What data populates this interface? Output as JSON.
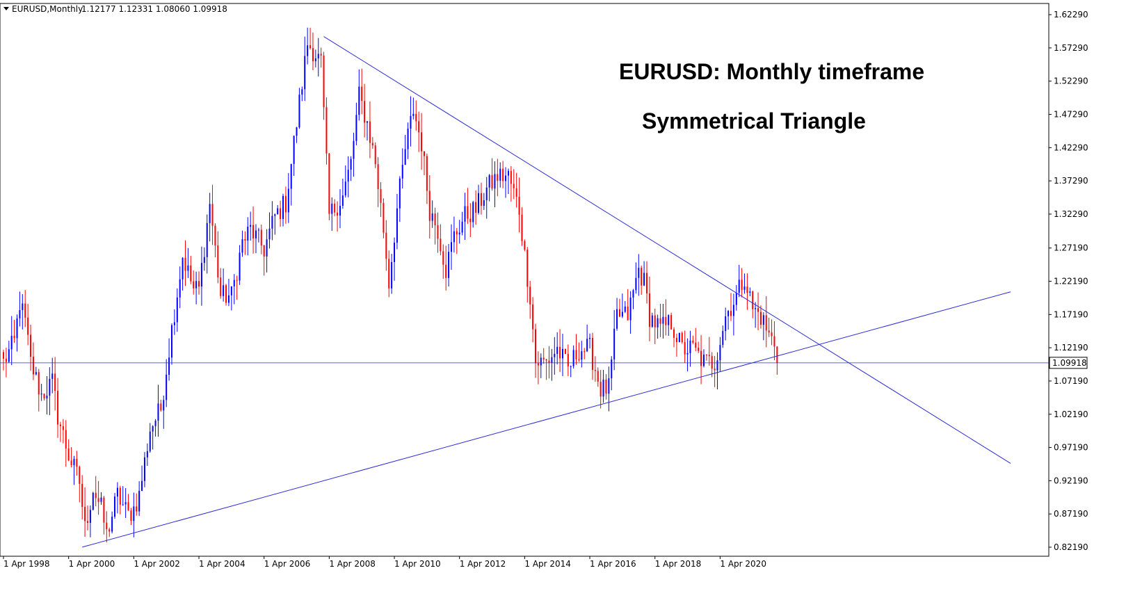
{
  "header": {
    "symbol": "EURUSD,Monthly",
    "ohlc": "1.12177 1.12331 1.08060 1.09918"
  },
  "annotations": {
    "title": "EURUSD: Monthly timeframe",
    "pattern": "Symmetrical Triangle"
  },
  "colors": {
    "bull": "#0000ff",
    "bear": "#ff0000",
    "trendline": "#2b2bd6",
    "current_price_line": "#2b2bd6",
    "price_tag_bg": "#ffffff"
  },
  "chart_data": {
    "type": "candlestick",
    "symbol": "EURUSD",
    "timeframe": "Monthly",
    "current_price": 1.09918,
    "current_price_label": "1.09918",
    "ylim": [
      0.8,
      1.643
    ],
    "y_ticks": [
      "1.62290",
      "1.57290",
      "1.52290",
      "1.47290",
      "1.42290",
      "1.37290",
      "1.32290",
      "1.27190",
      "1.22190",
      "1.17190",
      "1.12190",
      "1.07190",
      "1.02190",
      "0.97190",
      "0.92190",
      "0.87190",
      "0.82190"
    ],
    "x_ticks": [
      "1 Apr 1998",
      "1 Apr 2000",
      "1 Apr 2002",
      "1 Apr 2004",
      "1 Apr 2006",
      "1 Apr 2008",
      "1 Apr 2010",
      "1 Apr 2012",
      "1 Apr 2014",
      "1 Apr 2016",
      "1 Apr 2018",
      "1 Apr 2020"
    ],
    "x_tick_index": [
      0,
      24,
      48,
      72,
      96,
      120,
      144,
      168,
      192,
      216,
      240,
      264
    ],
    "anchors": [
      [
        0,
        1.1
      ],
      [
        4,
        1.13
      ],
      [
        6,
        1.19
      ],
      [
        8,
        1.16
      ],
      [
        10,
        1.1
      ],
      [
        14,
        1.05
      ],
      [
        18,
        1.07
      ],
      [
        20,
        1.02
      ],
      [
        24,
        0.96
      ],
      [
        28,
        0.92
      ],
      [
        30,
        0.85
      ],
      [
        33,
        0.91
      ],
      [
        36,
        0.88
      ],
      [
        38,
        0.84
      ],
      [
        42,
        0.9
      ],
      [
        46,
        0.87
      ],
      [
        48,
        0.88
      ],
      [
        50,
        0.9
      ],
      [
        54,
        1.0
      ],
      [
        58,
        1.03
      ],
      [
        62,
        1.15
      ],
      [
        66,
        1.26
      ],
      [
        70,
        1.21
      ],
      [
        72,
        1.21
      ],
      [
        76,
        1.34
      ],
      [
        80,
        1.2
      ],
      [
        84,
        1.2
      ],
      [
        88,
        1.28
      ],
      [
        91,
        1.3
      ],
      [
        96,
        1.27
      ],
      [
        100,
        1.32
      ],
      [
        104,
        1.34
      ],
      [
        108,
        1.46
      ],
      [
        112,
        1.58
      ],
      [
        114,
        1.57
      ],
      [
        117,
        1.55
      ],
      [
        120,
        1.32
      ],
      [
        125,
        1.35
      ],
      [
        128,
        1.4
      ],
      [
        131,
        1.5
      ],
      [
        134,
        1.46
      ],
      [
        137,
        1.4
      ],
      [
        140,
        1.3
      ],
      [
        142,
        1.22
      ],
      [
        145,
        1.33
      ],
      [
        148,
        1.42
      ],
      [
        151,
        1.48
      ],
      [
        154,
        1.43
      ],
      [
        157,
        1.33
      ],
      [
        160,
        1.3
      ],
      [
        163,
        1.24
      ],
      [
        166,
        1.29
      ],
      [
        170,
        1.32
      ],
      [
        174,
        1.33
      ],
      [
        178,
        1.36
      ],
      [
        182,
        1.38
      ],
      [
        186,
        1.38
      ],
      [
        190,
        1.33
      ],
      [
        192,
        1.26
      ],
      [
        194,
        1.2
      ],
      [
        196,
        1.1
      ],
      [
        200,
        1.1
      ],
      [
        204,
        1.12
      ],
      [
        208,
        1.09
      ],
      [
        212,
        1.12
      ],
      [
        216,
        1.12
      ],
      [
        220,
        1.06
      ],
      [
        223,
        1.06
      ],
      [
        226,
        1.17
      ],
      [
        230,
        1.17
      ],
      [
        234,
        1.24
      ],
      [
        236,
        1.22
      ],
      [
        238,
        1.17
      ],
      [
        242,
        1.15
      ],
      [
        246,
        1.16
      ],
      [
        250,
        1.12
      ],
      [
        254,
        1.12
      ],
      [
        258,
        1.1
      ],
      [
        262,
        1.1
      ],
      [
        266,
        1.17
      ],
      [
        270,
        1.2
      ],
      [
        273,
        1.23
      ],
      [
        276,
        1.18
      ],
      [
        279,
        1.17
      ],
      [
        282,
        1.14
      ],
      [
        284,
        1.13
      ],
      [
        285,
        1.099
      ]
    ],
    "trendlines": [
      {
        "x1": 118,
        "y1": 1.59,
        "x2": 371,
        "y2": 0.948
      },
      {
        "x1": 29,
        "y1": 0.822,
        "x2": 371,
        "y2": 1.206
      }
    ]
  }
}
